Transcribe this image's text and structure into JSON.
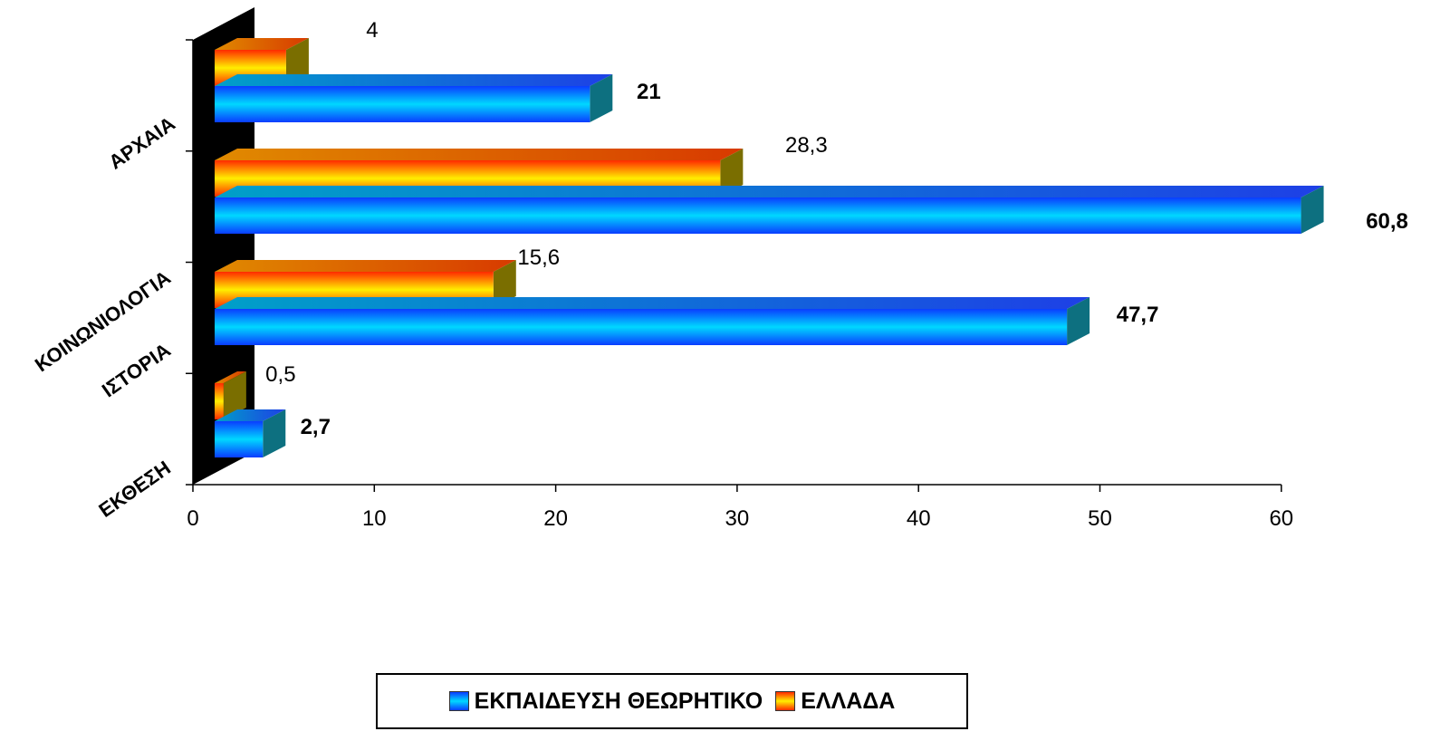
{
  "chart_data": {
    "type": "bar",
    "orientation": "horizontal",
    "style": "3d",
    "categories": [
      "ΑΡΧΑΙΑ",
      "ΚΟΙΝΩΝΙΟΛΟΓΙΑ",
      "ΙΣΤΟΡΙΑ",
      "ΕΚΘΕΣΗ"
    ],
    "series": [
      {
        "name": "ΕΚΠΑΙΔΕΥΣΗ ΘΕΩΡΗΤΙΚΟ",
        "values": [
          21,
          60.8,
          47.7,
          2.7
        ],
        "labels": [
          "21",
          "60,8",
          "47,7",
          "2,7"
        ],
        "color": "#1e90ff",
        "label_bold": true
      },
      {
        "name": "ΕΛΛΑΔΑ",
        "values": [
          4,
          28.3,
          15.6,
          0.5
        ],
        "labels": [
          "4",
          "28,3",
          "15,6",
          "0,5"
        ],
        "color": "#ff6a00",
        "label_bold": false
      }
    ],
    "xlim": [
      0,
      60
    ],
    "xticks": [
      "0",
      "10",
      "20",
      "30",
      "40",
      "50",
      "60"
    ],
    "xtick_values": [
      0,
      10,
      20,
      30,
      40,
      50,
      60
    ],
    "legend_position": "bottom",
    "grid": false,
    "title": "",
    "xlabel": "",
    "ylabel": ""
  }
}
